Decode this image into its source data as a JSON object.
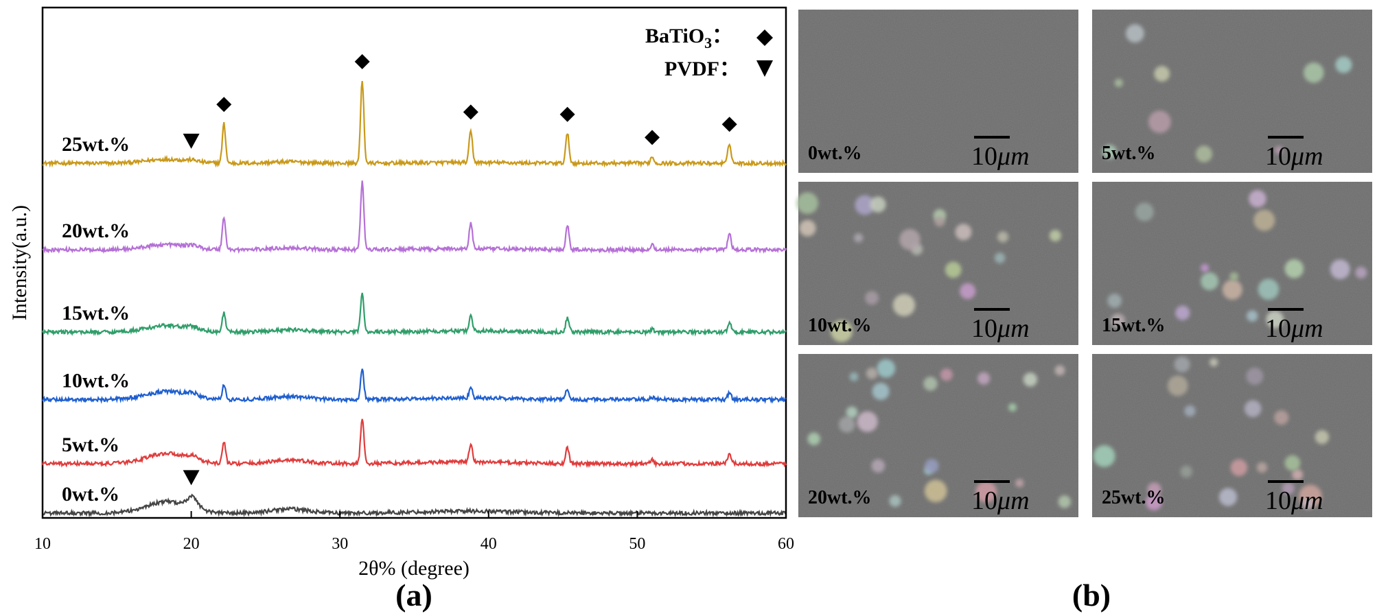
{
  "chart_data": {
    "type": "line",
    "xlabel": "2θ% (degree)",
    "ylabel": "Intensity(a.u.)",
    "xlim": [
      10,
      60
    ],
    "xticks": [
      "10",
      "20",
      "30",
      "40",
      "50",
      "60"
    ],
    "grid": false,
    "panel_label": "(a)",
    "legend": {
      "placement": "top-right",
      "entries": [
        {
          "label": "BaTiO",
          "subscript": "3",
          "separator": "：",
          "marker": "diamond"
        },
        {
          "label": "PVDF",
          "separator": "：",
          "marker": "triangle-down"
        }
      ]
    },
    "series": [
      {
        "name": "25wt.%",
        "color": "#c9991a",
        "offset": 4.25,
        "bt_scale": 1.0,
        "pvdf_scale": 0.3,
        "broad_scale": 0.35
      },
      {
        "name": "20wt.%",
        "color": "#b570d6",
        "offset": 3.2,
        "bt_scale": 0.82,
        "pvdf_scale": 0.5,
        "broad_scale": 0.45
      },
      {
        "name": "15wt.%",
        "color": "#2f9e6a",
        "offset": 2.2,
        "bt_scale": 0.48,
        "pvdf_scale": 0.55,
        "broad_scale": 0.55
      },
      {
        "name": "10wt.%",
        "color": "#1f5fcf",
        "offset": 1.38,
        "bt_scale": 0.36,
        "pvdf_scale": 0.65,
        "broad_scale": 0.7
      },
      {
        "name": "5wt.%",
        "color": "#e03c3c",
        "offset": 0.6,
        "bt_scale": 0.55,
        "pvdf_scale": 0.75,
        "broad_scale": 0.9
      },
      {
        "name": "0wt.%",
        "color": "#454545",
        "offset": 0.0,
        "bt_scale": 0.0,
        "pvdf_scale": 2.3,
        "broad_scale": 1.0
      }
    ],
    "batio3_peaks": [
      {
        "x": 22.2,
        "h": 0.48
      },
      {
        "x": 31.5,
        "h": 1.0
      },
      {
        "x": 38.8,
        "h": 0.38
      },
      {
        "x": 45.3,
        "h": 0.36
      },
      {
        "x": 51.0,
        "h": 0.08
      },
      {
        "x": 56.2,
        "h": 0.24
      }
    ],
    "diamond_markers_x": [
      22.2,
      31.5,
      38.8,
      45.3,
      51.0,
      56.2
    ],
    "triangle_markers": [
      {
        "series": "25wt.%",
        "x": 20.0
      },
      {
        "series": "0wt.%",
        "x": 20.0
      }
    ]
  },
  "panel_b": {
    "label": "(b)",
    "scale_text": "10",
    "scale_unit": "μm",
    "images": [
      {
        "label": "0wt.%",
        "particles": 0
      },
      {
        "label": "5wt.%",
        "particles": 9
      },
      {
        "label": "10wt.%",
        "particles": 18
      },
      {
        "label": "15wt.%",
        "particles": 16
      },
      {
        "label": "20wt.%",
        "particles": 22
      },
      {
        "label": "25wt.%",
        "particles": 20
      }
    ]
  }
}
